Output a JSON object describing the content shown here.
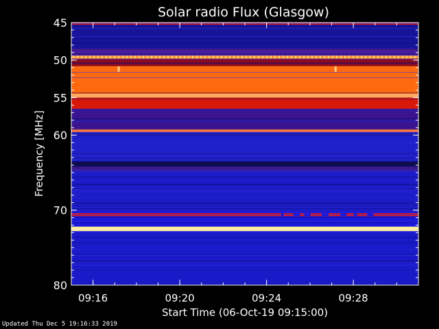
{
  "footer": {
    "updated": "Updated Thu Dec  5 19:16:33 2019"
  },
  "chart_data": {
    "type": "heatmap",
    "title": "Solar radio Flux (Glasgow)",
    "xlabel": "Start Time (06-Oct-19 09:15:00)",
    "ylabel": "Frequency [MHz]",
    "xlim": [
      "09:15:00",
      "09:31:00"
    ],
    "ylim": [
      45,
      80
    ],
    "y_scale": "linear-inverted",
    "x_ticks": [
      "09:16",
      "09:20",
      "09:24",
      "09:28"
    ],
    "y_ticks": [
      45,
      50,
      55,
      60,
      70,
      80
    ],
    "background_color": "#1a1adc",
    "bands": [
      {
        "freq_min": 45.0,
        "freq_max": 45.3,
        "level": "red",
        "color": "#d01010"
      },
      {
        "freq_min": 45.3,
        "freq_max": 48.5,
        "level": "dark-blue",
        "color": "#18149a"
      },
      {
        "freq_min": 48.5,
        "freq_max": 49.4,
        "level": "purple",
        "color": "#4a1a8a"
      },
      {
        "freq_min": 49.4,
        "freq_max": 49.8,
        "level": "orange-dotted",
        "color": "#ff9a3a"
      },
      {
        "freq_min": 49.8,
        "freq_max": 50.8,
        "level": "dark-red",
        "color": "#8a0c20"
      },
      {
        "freq_min": 50.8,
        "freq_max": 54.5,
        "level": "orange",
        "color": "#ff6a10"
      },
      {
        "freq_min": 54.5,
        "freq_max": 55.0,
        "level": "light-orange",
        "color": "#ffaa60"
      },
      {
        "freq_min": 55.0,
        "freq_max": 56.5,
        "level": "red",
        "color": "#d81808"
      },
      {
        "freq_min": 56.5,
        "freq_max": 59.2,
        "level": "purple",
        "color": "#3a1490"
      },
      {
        "freq_min": 59.2,
        "freq_max": 59.6,
        "level": "orange",
        "color": "#ff7a40"
      },
      {
        "freq_min": 59.6,
        "freq_max": 63.5,
        "level": "blue",
        "color": "#2020c8"
      },
      {
        "freq_min": 63.5,
        "freq_max": 64.2,
        "level": "dark-navy",
        "color": "#0c0c50"
      },
      {
        "freq_min": 64.2,
        "freq_max": 64.8,
        "level": "purple",
        "color": "#3a1a8a"
      },
      {
        "freq_min": 64.8,
        "freq_max": 70.2,
        "level": "blue",
        "color": "#1c1cc8"
      },
      {
        "freq_min": 70.4,
        "freq_max": 70.8,
        "level": "red",
        "color": "#e01818"
      },
      {
        "freq_min": 72.2,
        "freq_max": 72.8,
        "level": "yellow-white",
        "color": "#fff0a0"
      },
      {
        "freq_min": 73.0,
        "freq_max": 80.0,
        "level": "blue",
        "color": "#1a1ac8"
      }
    ],
    "bursts": [
      {
        "time": "09:17:10",
        "freq": 51.2,
        "color": "#ffd080"
      },
      {
        "time": "09:27:10",
        "freq": 51.2,
        "color": "#ffd080"
      }
    ],
    "band_gaps": [
      {
        "band_freq": 70.6,
        "time_start": "09:24:40",
        "time_end": "09:28:50",
        "pattern": "intermittent"
      }
    ]
  }
}
